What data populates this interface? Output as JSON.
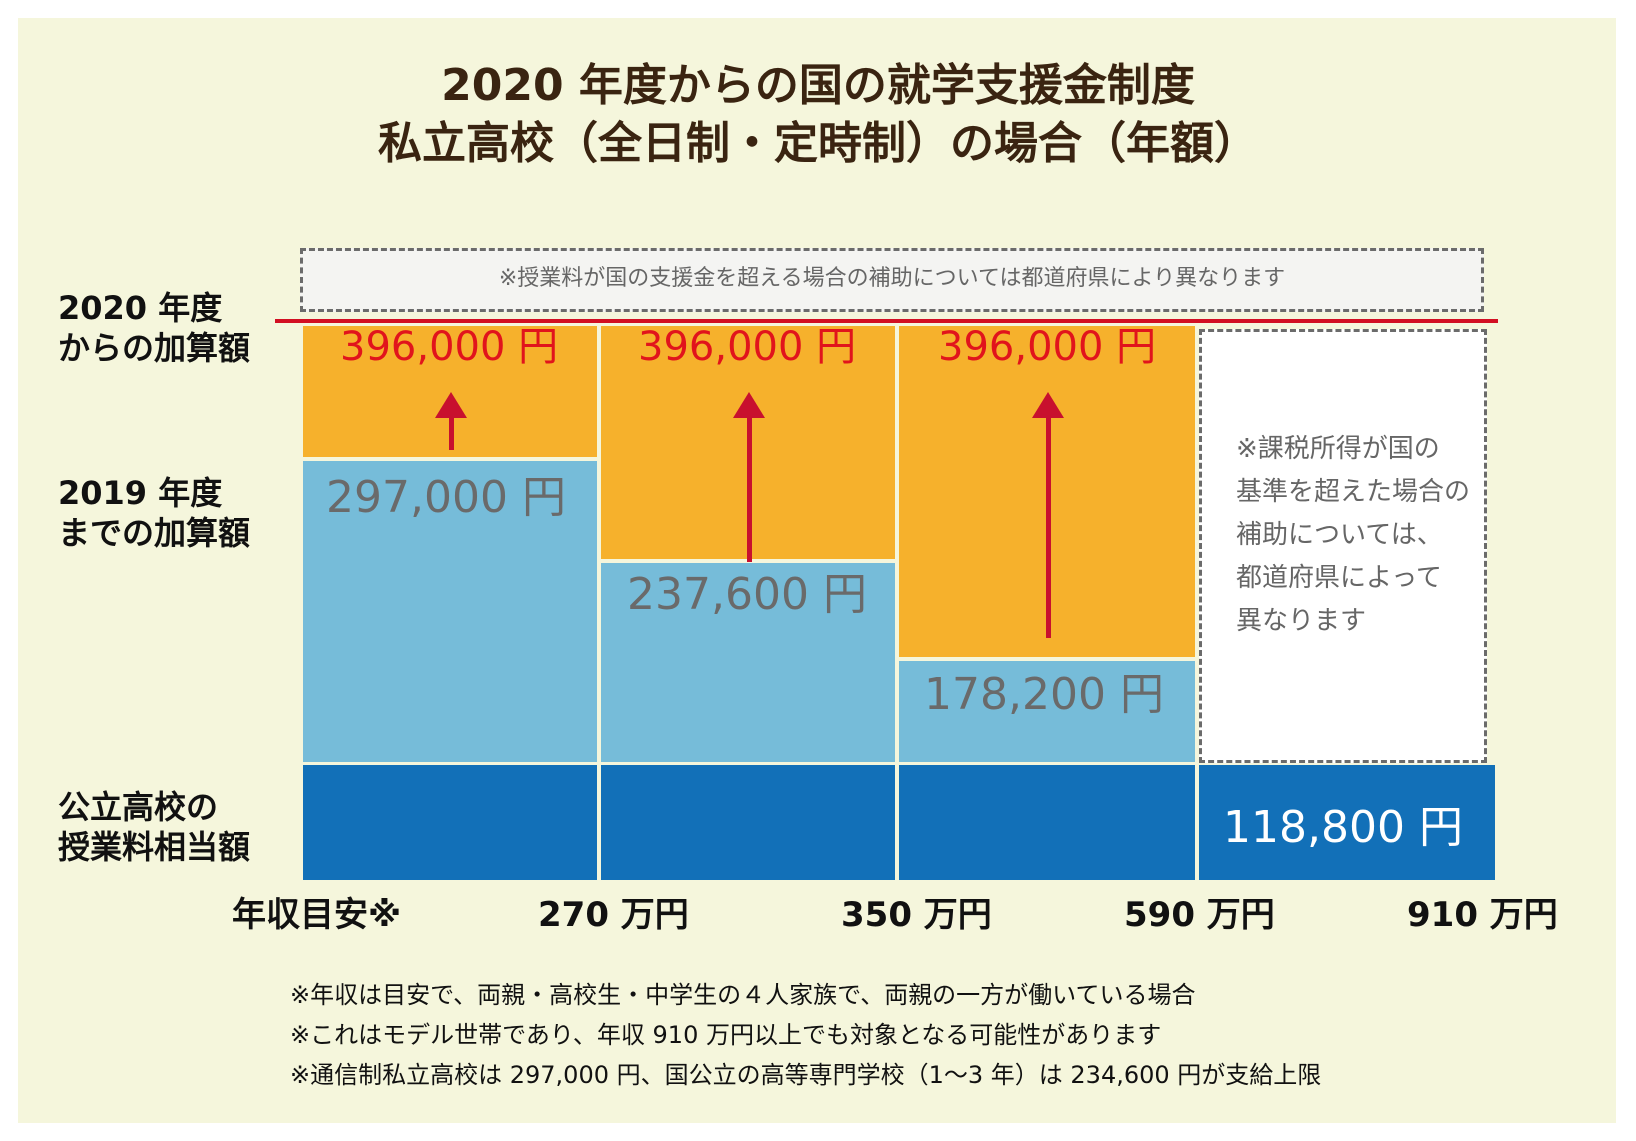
{
  "title": {
    "line1": "2020 年度からの国の就学支援金制度",
    "line2": "私立高校（全日制・定時制）の場合（年額）"
  },
  "top_note": "※授業料が国の支援金を超える場合の補助については都道府県により異なります",
  "row_labels": {
    "r2020": [
      "2020 年度",
      "からの加算額"
    ],
    "r2019": [
      "2019 年度",
      "までの加算額"
    ],
    "public": [
      "公立高校の",
      "授業料相当額"
    ]
  },
  "chart_data": {
    "type": "bar",
    "ylim": [
      0,
      396000
    ],
    "x_axis_title": "年収目安※",
    "x_ticks": [
      "270 万円",
      "350 万円",
      "590 万円",
      "910 万円"
    ],
    "segments": [
      {
        "range": "〜270 万円",
        "base": 118800,
        "until_2019": 297000,
        "from_2020": 396000
      },
      {
        "range": "270〜350 万円",
        "base": 118800,
        "until_2019": 237600,
        "from_2020": 396000
      },
      {
        "range": "350〜590 万円",
        "base": 118800,
        "until_2019": 178200,
        "from_2020": 396000
      },
      {
        "range": "590〜910 万円",
        "base": 118800,
        "until_2019": null,
        "from_2020": null
      }
    ],
    "labels": {
      "v2020": "396,000 円",
      "v2019": [
        "297,000 円",
        "237,600 円",
        "178,200 円"
      ],
      "base": "118,800 円"
    },
    "colors": {
      "from_2020": "#f6b12c",
      "until_2019": "#76bcd9",
      "base": "#1270b8",
      "limit_line": "#d20f22",
      "arrow": "#c8102e"
    }
  },
  "side_note": [
    "※課税所得が国の",
    "基準を超えた場合の",
    "補助については、",
    "都道府県によって",
    "異なります"
  ],
  "footnotes": [
    "※年収は目安で、両親・高校生・中学生の４人家族で、両親の一方が働いている場合",
    "※これはモデル世帯であり、年収 910 万円以上でも対象となる可能性があります",
    "※通信制私立高校は 297,000 円、国公立の高等専門学校（1〜3 年）は 234,600 円が支給上限"
  ]
}
